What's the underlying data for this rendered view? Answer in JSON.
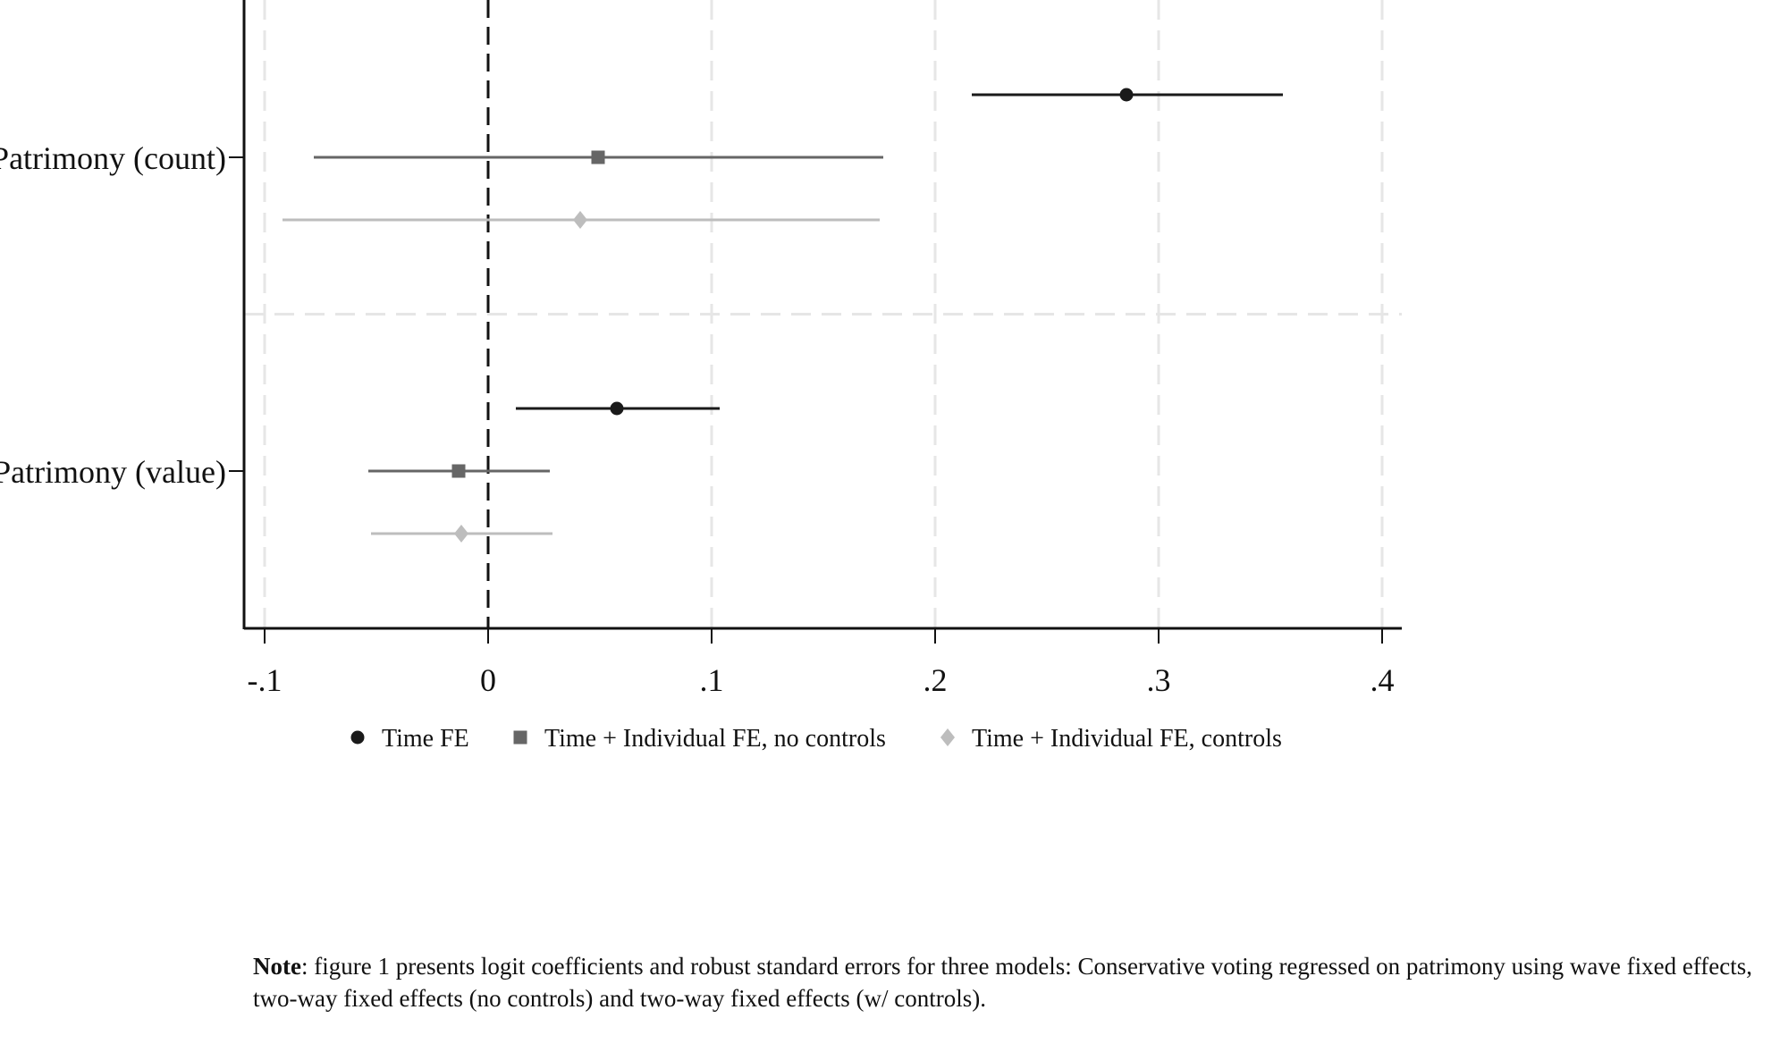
{
  "chart_data": {
    "type": "coefficient-plot",
    "title": "",
    "xlabel": "",
    "ylabel": "",
    "xlim": [
      -0.11,
      0.41
    ],
    "x_ticks": [
      -0.1,
      0,
      0.1,
      0.2,
      0.3,
      0.4
    ],
    "x_tick_labels": [
      "-.1",
      "0",
      ".1",
      ".2",
      ".3",
      ".4"
    ],
    "reference_line": 0,
    "grid": true,
    "categories": [
      "Patrimony (count)",
      "Patrimony (value)"
    ],
    "series": [
      {
        "name": "Time FE",
        "marker": "circle",
        "color": "#1a1a1a",
        "estimates": [
          0.2856,
          0.0576
        ],
        "ci_low": [
          0.2164,
          0.0124
        ],
        "ci_high": [
          0.3556,
          0.1036
        ]
      },
      {
        "name": "Time + Individual FE, no controls",
        "marker": "square",
        "color": "#666666",
        "estimates": [
          0.0492,
          -0.0132
        ],
        "ci_low": [
          -0.078,
          -0.0536
        ],
        "ci_high": [
          0.1768,
          0.0276
        ]
      },
      {
        "name": "Time + Individual FE, controls",
        "marker": "diamond",
        "color": "#bdbdbd",
        "estimates": [
          0.0412,
          -0.012
        ],
        "ci_low": [
          -0.092,
          -0.0524
        ],
        "ci_high": [
          0.1752,
          0.0288
        ]
      }
    ],
    "legend_placement": "bottom"
  },
  "note": {
    "label": "Note",
    "text": ": figure 1 presents logit coefficients and robust standard errors for three models: Conservative voting regressed on patrimony using wave fixed effects, two-way fixed effects (no controls) and two-way fixed effects (w/ controls)."
  }
}
